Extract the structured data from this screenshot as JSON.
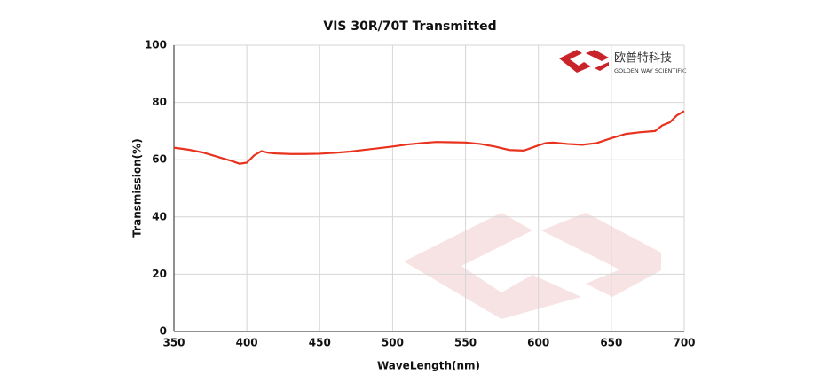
{
  "chart_data": {
    "type": "line",
    "title": "VIS 30R/70T Transmitted",
    "x_label": "WaveLength(nm)",
    "y_label": "Transmission(%)",
    "annotations": [
      "欧普特科技",
      "GOLDEN WAY SCIENTIFIC"
    ],
    "x": [
      350,
      360,
      370,
      380,
      390,
      395,
      400,
      405,
      410,
      415,
      420,
      430,
      440,
      450,
      460,
      470,
      480,
      490,
      500,
      510,
      520,
      530,
      540,
      550,
      560,
      570,
      580,
      590,
      600,
      605,
      610,
      620,
      630,
      640,
      650,
      660,
      670,
      680,
      685,
      690,
      695,
      700
    ],
    "series": [
      {
        "name": "Transmitted",
        "color": "#e8321e",
        "values": [
          64.2,
          63.5,
          62.5,
          61,
          59.5,
          58.6,
          59,
          61.5,
          63,
          62.4,
          62.2,
          62,
          62,
          62.1,
          62.4,
          62.8,
          63.4,
          64,
          64.6,
          65.3,
          65.8,
          66.2,
          66.1,
          66,
          65.5,
          64.6,
          63.4,
          63.2,
          65,
          65.8,
          66,
          65.5,
          65.2,
          65.8,
          67.5,
          69,
          69.6,
          70,
          72,
          73,
          75.5,
          77
        ]
      }
    ],
    "xlim": [
      350,
      700
    ],
    "xticks": [
      350,
      400,
      450,
      500,
      550,
      600,
      650,
      700
    ],
    "ylim": [
      0,
      100
    ],
    "yticks": [
      0,
      20,
      40,
      60,
      80,
      100
    ],
    "grid": true
  }
}
